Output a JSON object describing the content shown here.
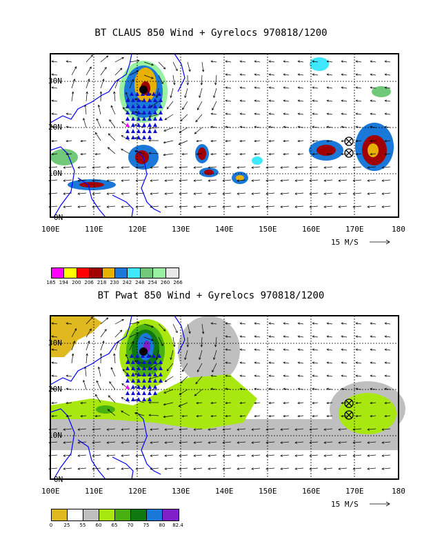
{
  "top": {
    "title": "BT CLAUS 850 Wind + Gyrelocs 970818/1200",
    "lat_labels": [
      "30N",
      "20N",
      "10N",
      "0N"
    ],
    "lon_labels": [
      "100E",
      "110E",
      "120E",
      "130E",
      "140E",
      "150E",
      "160E",
      "170E",
      "180"
    ],
    "scale_label": "15 M/S",
    "colorbar": {
      "labels": [
        "185",
        "194",
        "200",
        "206",
        "218",
        "230",
        "242",
        "248",
        "254",
        "260",
        "266"
      ],
      "colors": [
        "#ff00ff",
        "#ffff00",
        "#ff0000",
        "#a00000",
        "#e8b000",
        "#1a78d8",
        "#40e8ff",
        "#70c878",
        "#98f0a0",
        "#e8e8e8"
      ]
    }
  },
  "bottom": {
    "title": "BT Pwat 850 Wind + Gyrelocs 970818/1200",
    "lat_labels": [
      "30N",
      "20N",
      "10N",
      "0N"
    ],
    "lon_labels": [
      "100E",
      "110E",
      "120E",
      "130E",
      "140E",
      "150E",
      "160E",
      "170E",
      "180"
    ],
    "scale_label": "15 M/S",
    "colorbar": {
      "labels": [
        "0",
        "25",
        "55",
        "60",
        "65",
        "70",
        "75",
        "80",
        "82.4"
      ],
      "colors": [
        "#e0b820",
        "#ffffff",
        "#bfbfbf",
        "#a8e810",
        "#48b010",
        "#107810",
        "#1a78d8",
        "#8020c8"
      ]
    }
  },
  "colors": {
    "coastline": "#0000ff",
    "gyre_marker": "#000000",
    "triangle_blue": "#1010d0",
    "triangle_magenta": "#ff00ff"
  }
}
